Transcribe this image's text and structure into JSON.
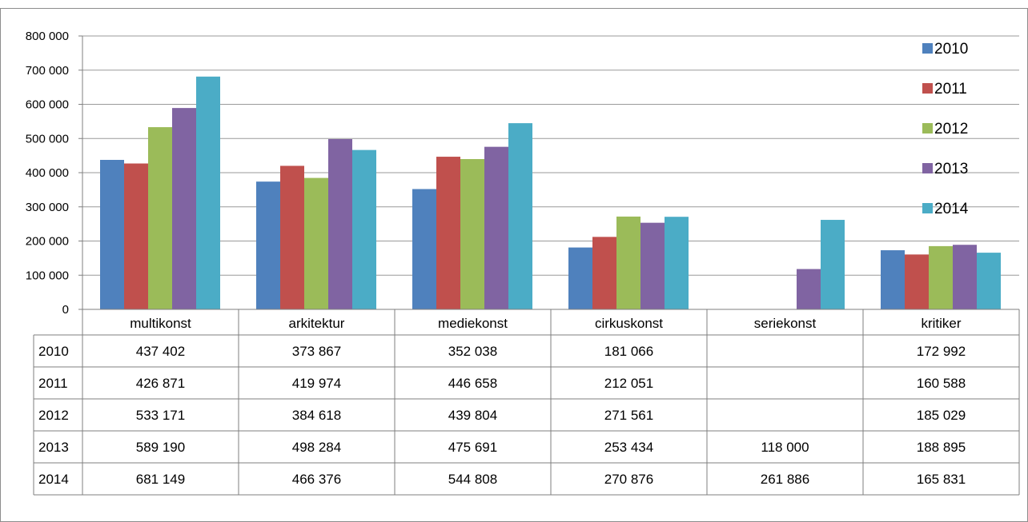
{
  "chart_data": {
    "type": "bar",
    "categories": [
      "multikonst",
      "arkitektur",
      "mediekonst",
      "cirkuskonst",
      "seriekonst",
      "kritiker"
    ],
    "series": [
      {
        "name": "2010",
        "color": "#4f81bd",
        "values": [
          437402,
          373867,
          352038,
          181066,
          null,
          172992
        ],
        "labels": [
          "437 402",
          "373 867",
          "352 038",
          "181 066",
          "",
          "172 992"
        ]
      },
      {
        "name": "2011",
        "color": "#c0504d",
        "values": [
          426871,
          419974,
          446658,
          212051,
          null,
          160588
        ],
        "labels": [
          "426 871",
          "419 974",
          "446 658",
          "212 051",
          "",
          "160 588"
        ]
      },
      {
        "name": "2012",
        "color": "#9bbb59",
        "values": [
          533171,
          384618,
          439804,
          271561,
          null,
          185029
        ],
        "labels": [
          "533 171",
          "384 618",
          "439 804",
          "271 561",
          "",
          "185 029"
        ]
      },
      {
        "name": "2013",
        "color": "#8064a2",
        "values": [
          589190,
          498284,
          475691,
          253434,
          118000,
          188895
        ],
        "labels": [
          "589 190",
          "498 284",
          "475 691",
          "253 434",
          "118 000",
          "188 895"
        ]
      },
      {
        "name": "2014",
        "color": "#4bacc6",
        "values": [
          681149,
          466376,
          544808,
          270876,
          261886,
          165831
        ],
        "labels": [
          "681 149",
          "466 376",
          "544 808",
          "270 876",
          "261 886",
          "165 831"
        ]
      }
    ],
    "yticks": [
      0,
      100000,
      200000,
      300000,
      400000,
      500000,
      600000,
      700000,
      800000
    ],
    "ytick_labels": [
      "0",
      "100 000",
      "200 000",
      "300 000",
      "400 000",
      "500 000",
      "600 000",
      "700 000",
      "800 000"
    ],
    "ylim": [
      0,
      800000
    ],
    "grid": true,
    "legend_position": "right",
    "data_table": true
  }
}
